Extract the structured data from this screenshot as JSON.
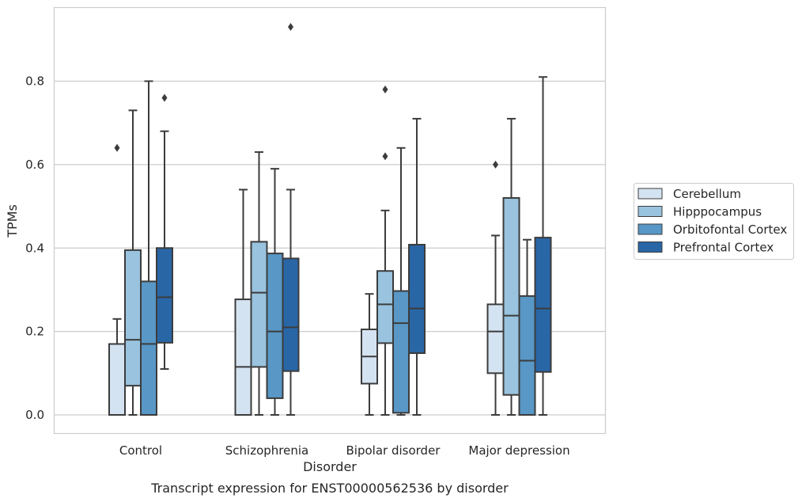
{
  "chart_data": {
    "type": "box",
    "caption": "Transcript expression for ENST00000562536 by disorder",
    "xlabel": "Disorder",
    "ylabel": "TPMs",
    "ylim": [
      -0.045,
      0.975
    ],
    "yticks": [
      "0.0",
      "0.2",
      "0.4",
      "0.6",
      "0.8"
    ],
    "grid": "horizontal",
    "legend_position": "right",
    "categories": [
      "Control",
      "Schizophrenia",
      "Bipolar disorder",
      "Major depression"
    ],
    "series": [
      {
        "name": "Cerebellum",
        "color": "#d4e3f1",
        "boxes": [
          {
            "whisker_low": 0.0,
            "q1": 0.0,
            "median": 0.0,
            "q3": 0.17,
            "whisker_high": 0.23,
            "outliers": [
              0.64
            ]
          },
          {
            "whisker_low": 0.0,
            "q1": 0.0,
            "median": 0.115,
            "q3": 0.277,
            "whisker_high": 0.54,
            "outliers": []
          },
          {
            "whisker_low": 0.0,
            "q1": 0.075,
            "median": 0.14,
            "q3": 0.205,
            "whisker_high": 0.29,
            "outliers": []
          },
          {
            "whisker_low": 0.0,
            "q1": 0.1,
            "median": 0.2,
            "q3": 0.265,
            "whisker_high": 0.43,
            "outliers": [
              0.6
            ]
          }
        ]
      },
      {
        "name": "Hipppocampus",
        "color": "#99c3de",
        "boxes": [
          {
            "whisker_low": 0.0,
            "q1": 0.07,
            "median": 0.18,
            "q3": 0.395,
            "whisker_high": 0.73,
            "outliers": []
          },
          {
            "whisker_low": 0.0,
            "q1": 0.115,
            "median": 0.293,
            "q3": 0.415,
            "whisker_high": 0.63,
            "outliers": []
          },
          {
            "whisker_low": 0.0,
            "q1": 0.172,
            "median": 0.265,
            "q3": 0.345,
            "whisker_high": 0.49,
            "outliers": [
              0.62,
              0.78
            ]
          },
          {
            "whisker_low": 0.0,
            "q1": 0.048,
            "median": 0.238,
            "q3": 0.52,
            "whisker_high": 0.71,
            "outliers": []
          }
        ]
      },
      {
        "name": "Orbitofontal Cortex",
        "color": "#5897c6",
        "boxes": [
          {
            "whisker_low": 0.0,
            "q1": 0.0,
            "median": 0.17,
            "q3": 0.32,
            "whisker_high": 0.8,
            "outliers": []
          },
          {
            "whisker_low": 0.0,
            "q1": 0.04,
            "median": 0.2,
            "q3": 0.387,
            "whisker_high": 0.59,
            "outliers": []
          },
          {
            "whisker_low": 0.0,
            "q1": 0.005,
            "median": 0.22,
            "q3": 0.297,
            "whisker_high": 0.64,
            "outliers": []
          },
          {
            "whisker_low": 0.0,
            "q1": 0.0,
            "median": 0.13,
            "q3": 0.285,
            "whisker_high": 0.42,
            "outliers": []
          }
        ]
      },
      {
        "name": "Prefrontal Cortex",
        "color": "#2966a6",
        "boxes": [
          {
            "whisker_low": 0.11,
            "q1": 0.173,
            "median": 0.282,
            "q3": 0.4,
            "whisker_high": 0.68,
            "outliers": [
              0.76
            ]
          },
          {
            "whisker_low": 0.0,
            "q1": 0.105,
            "median": 0.21,
            "q3": 0.375,
            "whisker_high": 0.54,
            "outliers": [
              0.93
            ]
          },
          {
            "whisker_low": 0.0,
            "q1": 0.148,
            "median": 0.255,
            "q3": 0.408,
            "whisker_high": 0.71,
            "outliers": []
          },
          {
            "whisker_low": 0.0,
            "q1": 0.103,
            "median": 0.255,
            "q3": 0.425,
            "whisker_high": 0.81,
            "outliers": []
          }
        ]
      }
    ]
  }
}
